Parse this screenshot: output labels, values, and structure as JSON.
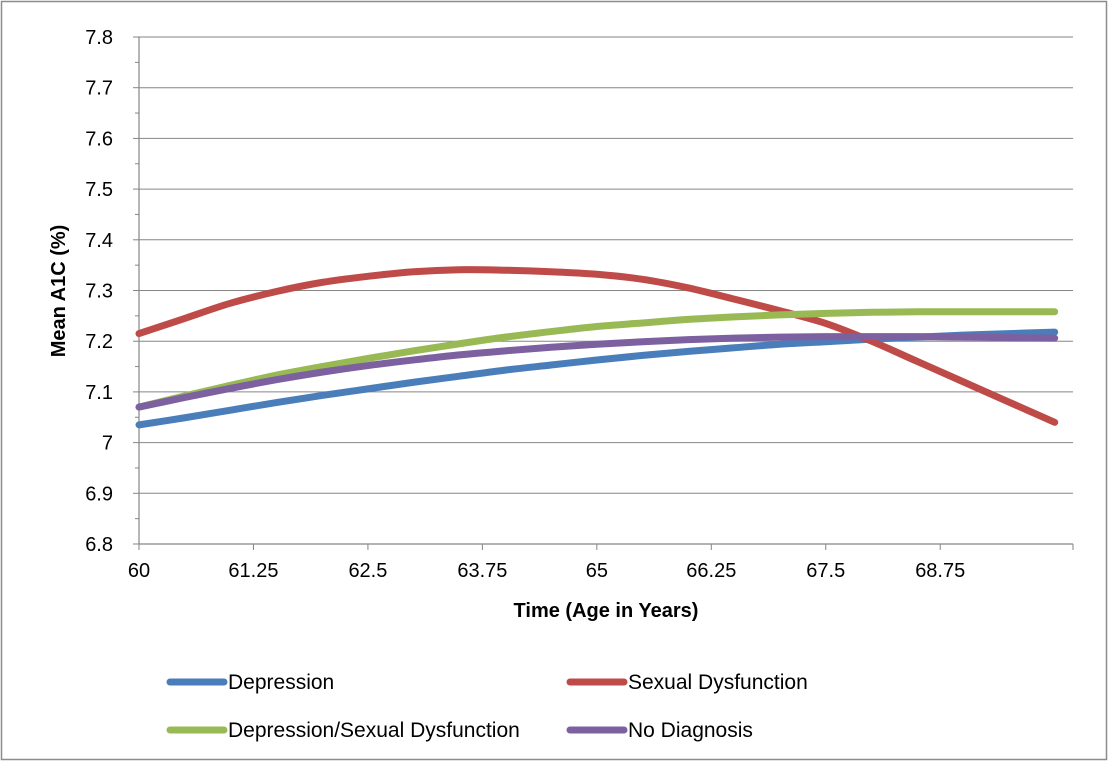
{
  "chart_data": {
    "type": "line",
    "title": "",
    "xlabel": "Time (Age in Years)",
    "ylabel": "Mean A1C (%)",
    "xlim": [
      60,
      70.2
    ],
    "ylim": [
      6.8,
      7.8
    ],
    "x_ticks": [
      60,
      61.25,
      62.5,
      63.75,
      65,
      66.25,
      67.5,
      68.75
    ],
    "x_tick_labels": [
      "60",
      "61.25",
      "62.5",
      "63.75",
      "65",
      "66.25",
      "67.5",
      "68.75"
    ],
    "y_ticks": [
      6.8,
      6.9,
      7,
      7.1,
      7.2,
      7.3,
      7.4,
      7.5,
      7.6,
      7.7,
      7.8
    ],
    "y_tick_labels": [
      "6.8",
      "6.9",
      "7",
      "7.1",
      "7.2",
      "7.3",
      "7.4",
      "7.5",
      "7.6",
      "7.7",
      "7.8"
    ],
    "grid": "horizontal",
    "legend_position": "bottom",
    "x": [
      60,
      60.5,
      61,
      61.5,
      62,
      62.5,
      63,
      63.5,
      64,
      64.5,
      65,
      65.5,
      66,
      66.5,
      67,
      67.5,
      68,
      68.5,
      69,
      69.5,
      70
    ],
    "series": [
      {
        "name": "Depression",
        "color": "#4a7ebb",
        "values": [
          7.035,
          7.049,
          7.064,
          7.079,
          7.093,
          7.106,
          7.119,
          7.131,
          7.143,
          7.153,
          7.163,
          7.172,
          7.18,
          7.187,
          7.194,
          7.199,
          7.204,
          7.208,
          7.212,
          7.215,
          7.218
        ]
      },
      {
        "name": "Sexual Dysfunction",
        "color": "#be4b48",
        "values": [
          7.215,
          7.245,
          7.275,
          7.298,
          7.316,
          7.328,
          7.337,
          7.341,
          7.34,
          7.337,
          7.332,
          7.322,
          7.305,
          7.283,
          7.26,
          7.235,
          7.2,
          7.16,
          7.12,
          7.08,
          7.04
        ]
      },
      {
        "name": "Depression/Sexual Dysfunction",
        "color": "#98b954",
        "values": [
          7.07,
          7.092,
          7.113,
          7.133,
          7.15,
          7.166,
          7.181,
          7.195,
          7.208,
          7.219,
          7.229,
          7.236,
          7.243,
          7.248,
          7.252,
          7.255,
          7.257,
          7.258,
          7.258,
          7.258,
          7.258
        ]
      },
      {
        "name": "No Diagnosis",
        "color": "#7d60a0",
        "values": [
          7.07,
          7.089,
          7.107,
          7.124,
          7.139,
          7.152,
          7.163,
          7.173,
          7.181,
          7.188,
          7.194,
          7.199,
          7.203,
          7.206,
          7.208,
          7.209,
          7.209,
          7.209,
          7.208,
          7.207,
          7.206
        ]
      }
    ]
  }
}
